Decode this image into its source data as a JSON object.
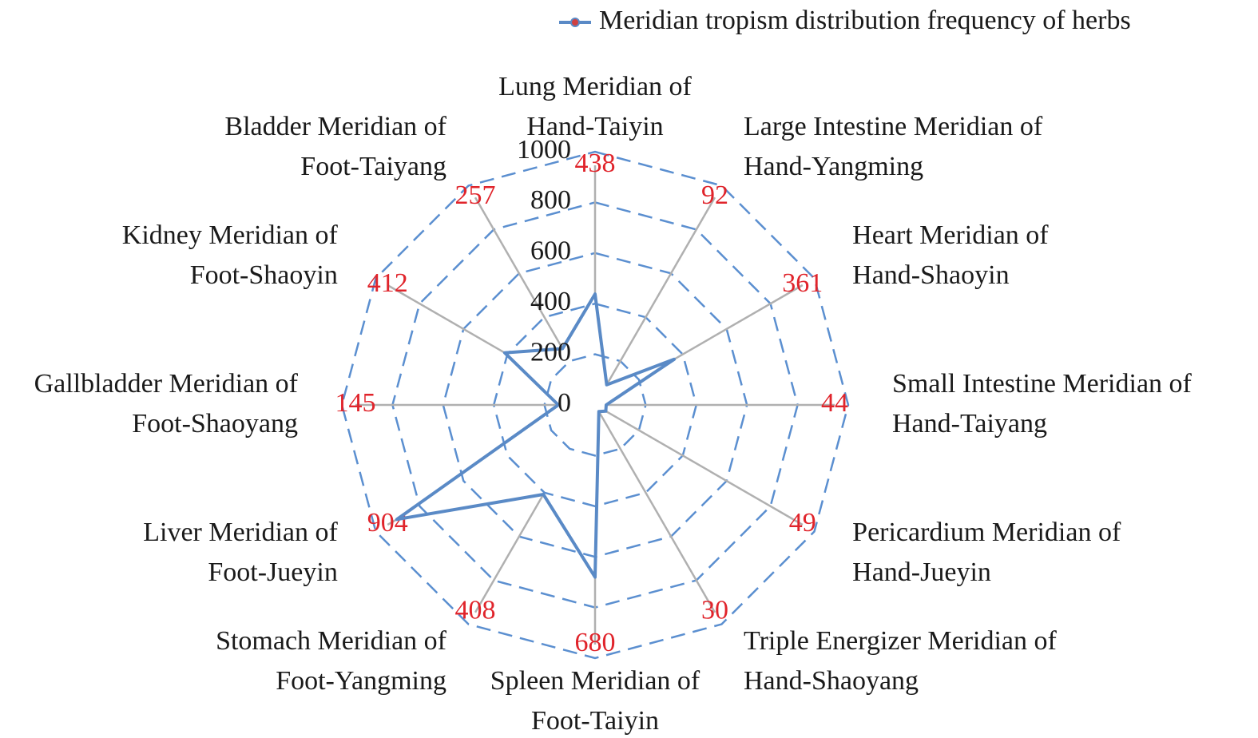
{
  "chart_data": {
    "type": "radar",
    "categories": [
      "Lung Meridian of Hand-Taiyin",
      "Large Intestine Meridian of Hand-Yangming",
      "Heart Meridian of Hand-Shaoyin",
      "Small Intestine Meridian of Hand-Taiyang",
      "Pericardium Meridian of Hand-Jueyin",
      "Triple Energizer Meridian of Hand-Shaoyang",
      "Spleen Meridian of Foot-Taiyin",
      "Stomach Meridian of Foot-Yangming",
      "Liver Meridian of Foot-Jueyin",
      "Gallbladder Meridian of Foot-Shaoyang",
      "Kidney Meridian of Foot-Shaoyin",
      "Bladder Meridian of Foot-Taiyang"
    ],
    "series": [
      {
        "name": "Meridian tropism distribution frequency of herbs",
        "color": "#5a8ac6",
        "values": [
          438,
          92,
          361,
          44,
          49,
          30,
          680,
          408,
          904,
          145,
          412,
          257
        ]
      }
    ],
    "ylim": [
      0,
      1000
    ],
    "yticks": [
      0,
      200,
      400,
      600,
      800,
      1000
    ],
    "grid": true,
    "grid_color": "#5b8fd0",
    "value_label_color": "#e0242b",
    "legend": "top-right"
  }
}
